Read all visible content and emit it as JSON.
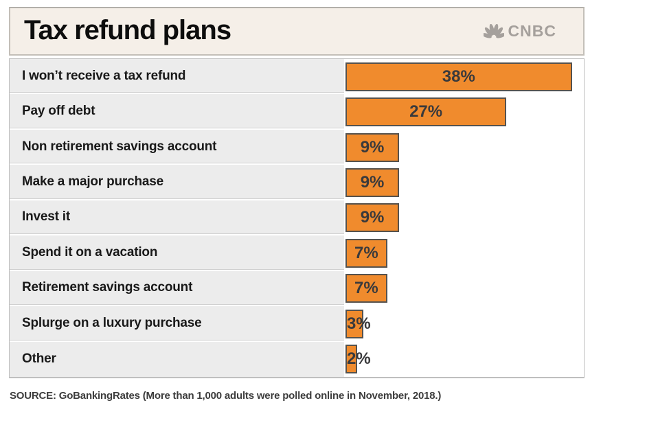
{
  "header": {
    "title": "Tax refund plans",
    "logo": {
      "brand": "CNBC",
      "icon": "nbc-peacock-icon"
    }
  },
  "chart_data": {
    "type": "bar",
    "orientation": "horizontal",
    "title": "Tax refund plans",
    "categories": [
      "I won’t receive a tax refund",
      "Pay off debt",
      "Non retirement savings account",
      "Make a major purchase",
      "Invest it",
      "Spend it on a vacation",
      "Retirement savings account",
      "Splurge on a luxury purchase",
      "Other"
    ],
    "values": [
      38,
      27,
      9,
      9,
      9,
      7,
      7,
      3,
      2
    ],
    "value_labels": [
      "38%",
      "27%",
      "9%",
      "9%",
      "9%",
      "7%",
      "7%",
      "3%",
      "2%"
    ],
    "xlim": [
      0,
      40
    ],
    "grid": false,
    "legend": false,
    "value_label_position": "center-inside",
    "bar_color": "#F08B2D",
    "bar_border_color": "#55524E"
  },
  "source": "SOURCE: GoBankingRates (More than 1,000 adults were polled online in November, 2018.)",
  "colors": {
    "header_bg": "#F5EFE8",
    "label_column_bg": "#ECECEC",
    "logo_gray": "#A5A09C",
    "value_text": "#3A3A3C",
    "label_text": "#191919"
  }
}
